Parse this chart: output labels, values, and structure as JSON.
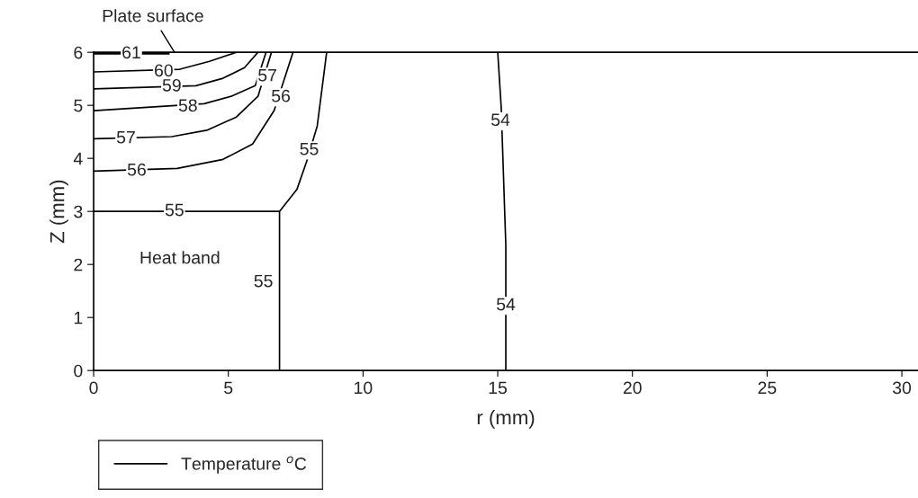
{
  "chart_data": {
    "type": "line",
    "xlabel": "r (mm)",
    "ylabel": "Z (mm)",
    "xlim": [
      0,
      30.6
    ],
    "ylim": [
      0,
      6
    ],
    "xticks": [
      0,
      5,
      10,
      15,
      20,
      25,
      30
    ],
    "yticks": [
      0,
      1,
      2,
      3,
      4,
      5,
      6
    ],
    "grid": false,
    "legend": "bottom left",
    "marker": "none",
    "line_style": "solid",
    "series": [
      {
        "name": "Temperature $^{o}$C",
        "color": "#000000",
        "x": [
          0,
          2.8,
          null,
          0,
          3.2,
          4.3,
          5.3,
          null,
          0,
          3.8,
          4.8,
          5.6,
          6.1,
          null,
          0,
          4.1,
          5.1,
          6.0,
          6.4,
          null,
          0,
          2.9,
          4.2,
          5.3,
          6.1,
          6.6,
          null,
          0,
          3.1,
          4.8,
          5.9,
          6.7,
          7.4,
          null,
          0,
          6.9,
          7.55,
          7.9,
          8.3,
          8.65,
          null,
          6.9,
          6.9,
          null,
          15.0,
          15.13,
          15.3,
          15.3
        ],
        "values": [
          5.97,
          5.97,
          null,
          5.63,
          5.68,
          5.83,
          6.0,
          null,
          5.31,
          5.37,
          5.51,
          5.71,
          6.0,
          null,
          4.9,
          5.03,
          5.17,
          5.37,
          6.0,
          null,
          4.37,
          4.41,
          4.53,
          4.78,
          5.17,
          6.0,
          null,
          3.76,
          3.81,
          3.98,
          4.27,
          4.9,
          6.0,
          null,
          3.0,
          3.0,
          3.42,
          3.93,
          4.61,
          6.0,
          null,
          0,
          3.0,
          null,
          6.0,
          4.95,
          2.36,
          0
        ]
      }
    ],
    "annotations": [
      {
        "text": "61",
        "x": 1.4,
        "y": 5.97
      },
      {
        "text": "60",
        "x": 2.6,
        "y": 5.63
      },
      {
        "text": "59",
        "x": 2.9,
        "y": 5.35
      },
      {
        "text": "58",
        "x": 3.5,
        "y": 4.97
      },
      {
        "text": "57",
        "x": 1.2,
        "y": 4.37
      },
      {
        "text": "56",
        "x": 1.6,
        "y": 3.76
      },
      {
        "text": "55",
        "x": 3.0,
        "y": 3.0
      },
      {
        "text": "57",
        "x": 6.45,
        "y": 5.54
      },
      {
        "text": "56",
        "x": 6.95,
        "y": 5.15
      },
      {
        "text": "55",
        "x": 8.0,
        "y": 4.15
      },
      {
        "text": "55",
        "x": 6.3,
        "y": 1.66
      },
      {
        "text": "54",
        "x": 15.1,
        "y": 4.7
      },
      {
        "text": "54",
        "x": 15.3,
        "y": 1.22
      },
      "Plate surface",
      "Heat band"
    ]
  }
}
